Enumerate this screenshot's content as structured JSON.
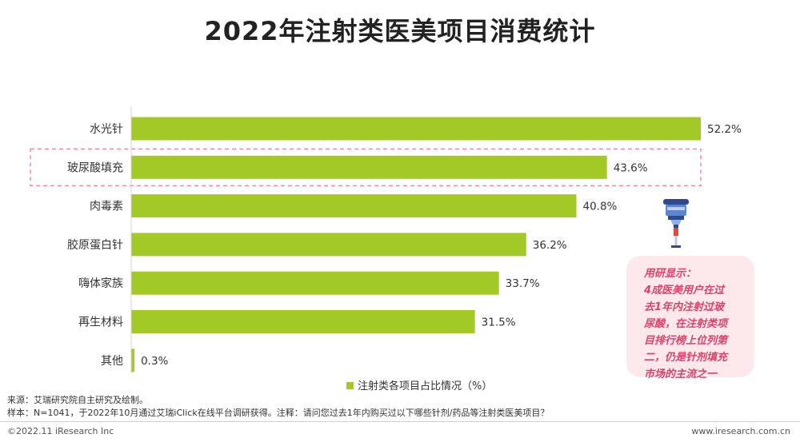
{
  "title": "2022年注射类医美项目消费统计",
  "chart_data": {
    "type": "bar",
    "orientation": "horizontal",
    "categories": [
      "水光针",
      "玻尿酸填充",
      "肉毒素",
      "胶原蛋白针",
      "嗨体家族",
      "再生材料",
      "其他"
    ],
    "series": [
      {
        "name": "注射类各项目占比情况（%）",
        "values": [
          52.2,
          43.6,
          40.8,
          36.2,
          33.7,
          31.5,
          0.3
        ],
        "labels": [
          "52.2%",
          "43.6%",
          "40.8%",
          "36.2%",
          "33.7%",
          "31.5%",
          "0.3%"
        ]
      }
    ],
    "highlighted_category": "玻尿酸填充",
    "legend_position": "bottom",
    "xlim": [
      0,
      52.2
    ],
    "grid": false,
    "bar_color": "#a3c926"
  },
  "note": {
    "lines": [
      "用研显示：",
      "4成医美用户在过",
      "去1年内注射过玻",
      "尿酸，在注射类项",
      "目排行榜上位列第",
      "二，仍是针剂填充",
      "市场的主流之一"
    ],
    "color": "#e0406a",
    "background": "#fde9ec"
  },
  "footer": {
    "source": "来源：艾瑞研究院自主研究及绘制。",
    "sample": "样本：N=1041，于2022年10月通过艾瑞iClick在线平台调研获得。注释：请问您过去1年内购买过以下哪些针剂/药品等注射类医美项目？",
    "copyright": "©2022.11 iResearch Inc",
    "website": "www.iresearch.com.cn"
  }
}
